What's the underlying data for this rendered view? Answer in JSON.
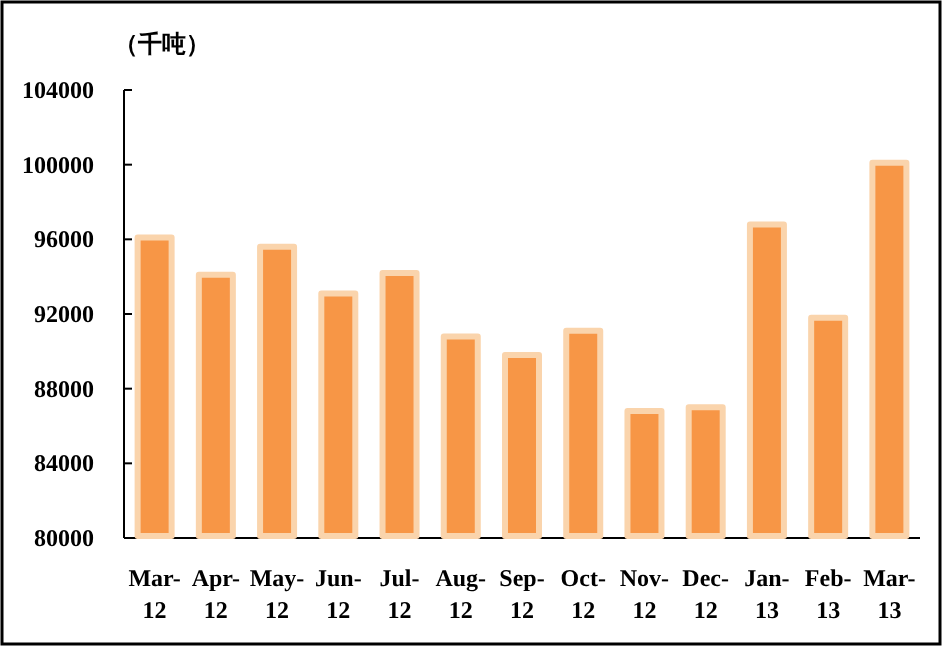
{
  "chart_data": {
    "type": "bar",
    "ylabel": "（千吨）",
    "categories": [
      "Mar-12",
      "Apr-12",
      "May-12",
      "Jun-12",
      "Jul-12",
      "Aug-12",
      "Sep-12",
      "Oct-12",
      "Nov-12",
      "Dec-12",
      "Jan-13",
      "Feb-13",
      "Mar-13"
    ],
    "values": [
      96100,
      94100,
      95600,
      93100,
      94200,
      90800,
      89800,
      91100,
      86800,
      87000,
      96800,
      91800,
      100100
    ],
    "color": "#f79646",
    "ylim": [
      80000,
      104000
    ],
    "yticks": [
      80000,
      84000,
      88000,
      92000,
      96000,
      100000,
      104000
    ]
  }
}
